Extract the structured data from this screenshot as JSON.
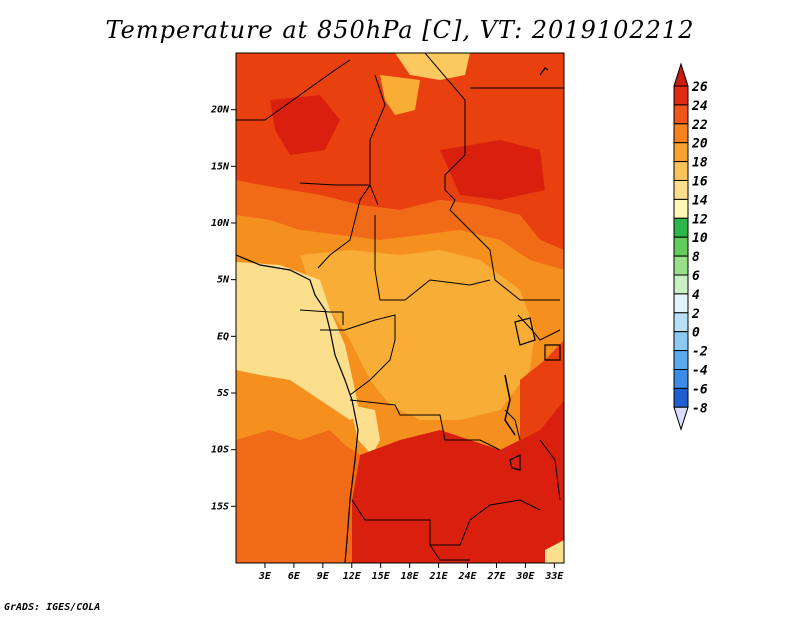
{
  "title": "Temperature at 850hPa [C], VT: 2019102212",
  "footer": "GrADS: IGES/COLA",
  "map": {
    "lon_range": [
      0,
      34
    ],
    "lat_range": [
      -20,
      25
    ],
    "lon_ticks": [
      "3E",
      "6E",
      "9E",
      "12E",
      "15E",
      "18E",
      "21E",
      "24E",
      "27E",
      "30E",
      "33E"
    ],
    "lat_ticks": [
      "20N",
      "15N",
      "10N",
      "5N",
      "EQ",
      "5S",
      "10S",
      "15S"
    ]
  },
  "colorbar": {
    "labels": [
      "26",
      "24",
      "22",
      "20",
      "18",
      "16",
      "14",
      "12",
      "10",
      "8",
      "6",
      "4",
      "2",
      "0",
      "-2",
      "-4",
      "-6",
      "-8"
    ],
    "colors": [
      "#e02a12",
      "#f0551a",
      "#f5821e",
      "#f8a32f",
      "#fbc15a",
      "#fcdf8c",
      "#fef7b6",
      "#2db64b",
      "#62cc5a",
      "#98e08a",
      "#c8f0c2",
      "#e3f3fb",
      "#b7e0f8",
      "#8ccaf4",
      "#5caaec",
      "#3c8ce6",
      "#1f5fd2",
      "#1840b8",
      "#0b1f8a",
      "#050d55"
    ],
    "over_color": "#c71e10",
    "under_color": "#dcdcff"
  },
  "regions_colors": {
    "hot": "#d9200f",
    "warm_red": "#e8410f",
    "orange_red": "#f06a18",
    "orange": "#f5901f",
    "light_orange": "#f8ad36",
    "yellow_orange": "#fbc95e",
    "pale": "#fde08e"
  }
}
